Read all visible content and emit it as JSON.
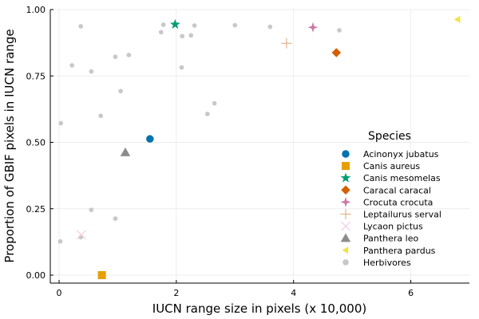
{
  "chart_data": {
    "type": "scatter",
    "xlabel": "IUCN range size in pixels (x 10,000)",
    "ylabel": "Proportion of GBIF pixels in IUCN range",
    "xlim": [
      -0.15,
      7.0
    ],
    "ylim": [
      -0.03,
      1.0
    ],
    "x_ticks": [
      0,
      2,
      4,
      6
    ],
    "x_tick_labels": [
      "0",
      "2",
      "4",
      "6"
    ],
    "y_ticks": [
      0.0,
      0.25,
      0.5,
      0.75,
      1.0
    ],
    "y_tick_labels": [
      "0.00",
      "0.25",
      "0.50",
      "0.75",
      "1.00"
    ],
    "grid": true,
    "legend": {
      "title": "Species",
      "placement": "bottom-right"
    },
    "series": [
      {
        "name": "Acinonyx jubatus",
        "marker": "circle",
        "color": "#0072B2",
        "points": [
          {
            "x": 1.55,
            "y": 0.513
          }
        ]
      },
      {
        "name": "Canis aureus",
        "marker": "square",
        "color": "#E69F00",
        "points": [
          {
            "x": 0.73,
            "y": 0.0
          }
        ]
      },
      {
        "name": "Canis mesomelas",
        "marker": "star",
        "color": "#009E73",
        "points": [
          {
            "x": 1.98,
            "y": 0.944
          }
        ]
      },
      {
        "name": "Caracal caracal",
        "marker": "diamond",
        "color": "#D55E00",
        "points": [
          {
            "x": 4.73,
            "y": 0.838
          }
        ]
      },
      {
        "name": "Crocuta crocuta",
        "marker": "star4",
        "color": "#CC79A7",
        "points": [
          {
            "x": 4.33,
            "y": 0.933
          }
        ]
      },
      {
        "name": "Leptailurus serval",
        "marker": "cross",
        "color": "#E2AD80",
        "points": [
          {
            "x": 3.88,
            "y": 0.873
          }
        ]
      },
      {
        "name": "Lycaon pictus",
        "marker": "xcross",
        "color": "#F2C6E0",
        "points": [
          {
            "x": 0.38,
            "y": 0.152
          }
        ]
      },
      {
        "name": "Panthera leo",
        "marker": "triangle",
        "color": "#8C8C8C",
        "points": [
          {
            "x": 1.13,
            "y": 0.462
          }
        ]
      },
      {
        "name": "Panthera pardus",
        "marker": "ltriangle",
        "color": "#F0E442",
        "points": [
          {
            "x": 6.8,
            "y": 0.963
          }
        ]
      },
      {
        "name": "Herbivores",
        "marker": "circle",
        "color": "#C8C8C8",
        "points": [
          {
            "x": 0.02,
            "y": 0.127
          },
          {
            "x": 0.03,
            "y": 0.572
          },
          {
            "x": 0.22,
            "y": 0.79
          },
          {
            "x": 0.37,
            "y": 0.937
          },
          {
            "x": 0.37,
            "y": 0.143
          },
          {
            "x": 0.55,
            "y": 0.767
          },
          {
            "x": 0.55,
            "y": 0.246
          },
          {
            "x": 0.71,
            "y": 0.6
          },
          {
            "x": 0.96,
            "y": 0.822
          },
          {
            "x": 0.96,
            "y": 0.213
          },
          {
            "x": 1.05,
            "y": 0.693
          },
          {
            "x": 1.19,
            "y": 0.829
          },
          {
            "x": 1.74,
            "y": 0.915
          },
          {
            "x": 1.78,
            "y": 0.943
          },
          {
            "x": 2.09,
            "y": 0.782
          },
          {
            "x": 2.1,
            "y": 0.9
          },
          {
            "x": 2.25,
            "y": 0.903
          },
          {
            "x": 2.31,
            "y": 0.94
          },
          {
            "x": 2.53,
            "y": 0.607
          },
          {
            "x": 2.65,
            "y": 0.647
          },
          {
            "x": 3.0,
            "y": 0.941
          },
          {
            "x": 3.6,
            "y": 0.935
          },
          {
            "x": 4.78,
            "y": 0.922
          }
        ]
      }
    ]
  }
}
